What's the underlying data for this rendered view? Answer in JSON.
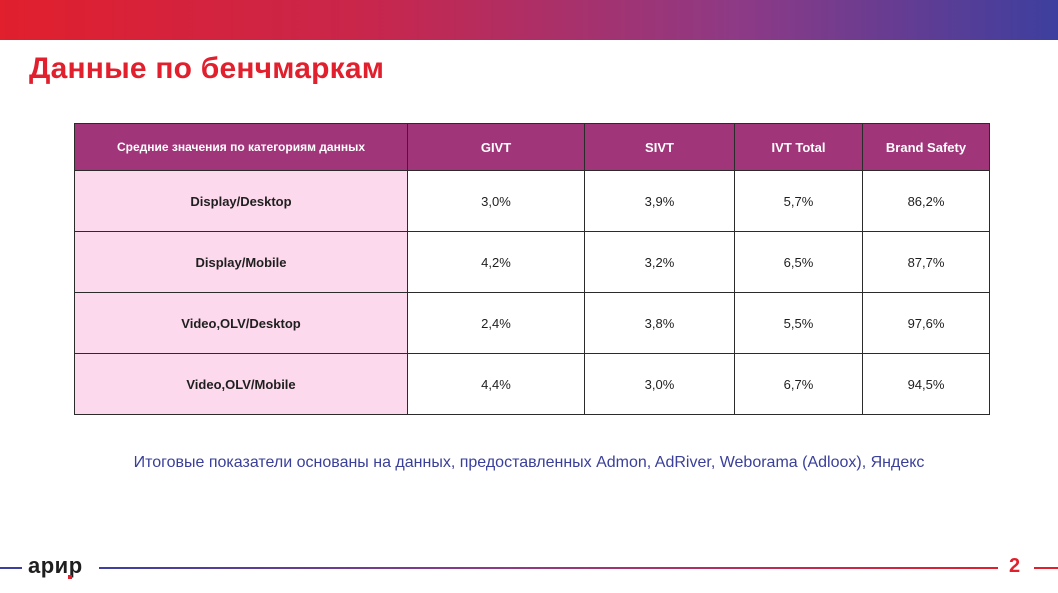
{
  "title": "Данные по бенчмаркам",
  "table": {
    "headers": [
      "Средние значения по категориям данных",
      "GIVT",
      "SIVT",
      "IVT Total",
      "Brand Safety"
    ],
    "rows": [
      [
        "Display/Desktop",
        "3,0%",
        "3,9%",
        "5,7%",
        "86,2%"
      ],
      [
        "Display/Mobile",
        "4,2%",
        "3,2%",
        "6,5%",
        "87,7%"
      ],
      [
        "Video,OLV/Desktop",
        "2,4%",
        "3,8%",
        "5,5%",
        "97,6%"
      ],
      [
        "Video,OLV/Mobile",
        "4,4%",
        "3,0%",
        "6,7%",
        "94,5%"
      ]
    ]
  },
  "note": "Итоговые показатели основаны на данных, предоставленных Admon, AdRiver, Weborama (Adloox), Яндекс",
  "footer": {
    "logo": "арир",
    "page_number": "2"
  },
  "colors": {
    "accent_red": "#e11f2d",
    "header_purple": "#a0357a",
    "category_pink": "#fcd9ec",
    "note_blue": "#3a3f9a"
  }
}
